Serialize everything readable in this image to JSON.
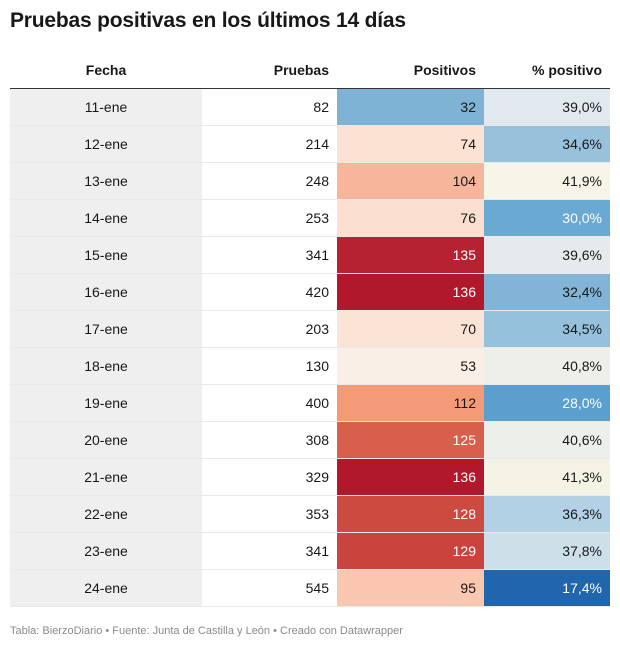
{
  "title": "Pruebas positivas en los últimos 14 días",
  "columns": [
    "Fecha",
    "Pruebas",
    "Positivos",
    "% positivo"
  ],
  "rows": [
    {
      "fecha": "11-ene",
      "pruebas": "82",
      "positivos": "32",
      "pct": "39,0%",
      "pos_bg": "#7fb3d5",
      "pos_fg": "#181818",
      "pct_bg": "#e1e9ee",
      "pct_fg": "#181818"
    },
    {
      "fecha": "12-ene",
      "pruebas": "214",
      "positivos": "74",
      "pct": "34,6%",
      "pos_bg": "#fbe2d3",
      "pos_fg": "#181818",
      "pct_bg": "#98c2dc",
      "pct_fg": "#181818"
    },
    {
      "fecha": "13-ene",
      "pruebas": "248",
      "positivos": "104",
      "pct": "41,9%",
      "pos_bg": "#f7b69b",
      "pos_fg": "#181818",
      "pct_bg": "#f7f4e8",
      "pct_fg": "#181818"
    },
    {
      "fecha": "14-ene",
      "pruebas": "253",
      "positivos": "76",
      "pct": "30,0%",
      "pos_bg": "#fbe0cf",
      "pos_fg": "#181818",
      "pct_bg": "#6aa9d2",
      "pct_fg": "#ffffff"
    },
    {
      "fecha": "15-ene",
      "pruebas": "341",
      "positivos": "135",
      "pct": "39,6%",
      "pos_bg": "#b72233",
      "pos_fg": "#ffffff",
      "pct_bg": "#e5ebed",
      "pct_fg": "#181818"
    },
    {
      "fecha": "16-ene",
      "pruebas": "420",
      "positivos": "136",
      "pct": "32,4%",
      "pos_bg": "#b2182b",
      "pos_fg": "#ffffff",
      "pct_bg": "#81b4d6",
      "pct_fg": "#181818"
    },
    {
      "fecha": "17-ene",
      "pruebas": "203",
      "positivos": "70",
      "pct": "34,5%",
      "pos_bg": "#fbe3d5",
      "pos_fg": "#181818",
      "pct_bg": "#96c1dc",
      "pct_fg": "#181818"
    },
    {
      "fecha": "18-ene",
      "pruebas": "130",
      "positivos": "53",
      "pct": "40,8%",
      "pos_bg": "#faefe6",
      "pos_fg": "#181818",
      "pct_bg": "#efefe9",
      "pct_fg": "#181818"
    },
    {
      "fecha": "19-ene",
      "pruebas": "400",
      "positivos": "112",
      "pct": "28,0%",
      "pos_bg": "#f49a76",
      "pos_fg": "#181818",
      "pct_bg": "#5a9fcd",
      "pct_fg": "#ffffff"
    },
    {
      "fecha": "20-ene",
      "pruebas": "308",
      "positivos": "125",
      "pct": "40,6%",
      "pos_bg": "#d75f4b",
      "pos_fg": "#ffffff",
      "pct_bg": "#edf0ea",
      "pct_fg": "#181818"
    },
    {
      "fecha": "21-ene",
      "pruebas": "329",
      "positivos": "136",
      "pct": "41,3%",
      "pos_bg": "#b2182b",
      "pos_fg": "#ffffff",
      "pct_bg": "#f4f3e6",
      "pct_fg": "#181818"
    },
    {
      "fecha": "22-ene",
      "pruebas": "353",
      "positivos": "128",
      "pct": "36,3%",
      "pos_bg": "#cc4a40",
      "pos_fg": "#ffffff",
      "pct_bg": "#b2d1e4",
      "pct_fg": "#181818"
    },
    {
      "fecha": "23-ene",
      "pruebas": "341",
      "positivos": "129",
      "pct": "37,8%",
      "pos_bg": "#c9443d",
      "pos_fg": "#ffffff",
      "pct_bg": "#cde0ea",
      "pct_fg": "#181818"
    },
    {
      "fecha": "24-ene",
      "pruebas": "545",
      "positivos": "95",
      "pct": "17,4%",
      "pos_bg": "#f9c7b0",
      "pos_fg": "#181818",
      "pct_bg": "#2166ac",
      "pct_fg": "#ffffff"
    }
  ],
  "footer": "Tabla: BierzoDiario • Fuente: Junta de Castilla y León • Creado con Datawrapper"
}
